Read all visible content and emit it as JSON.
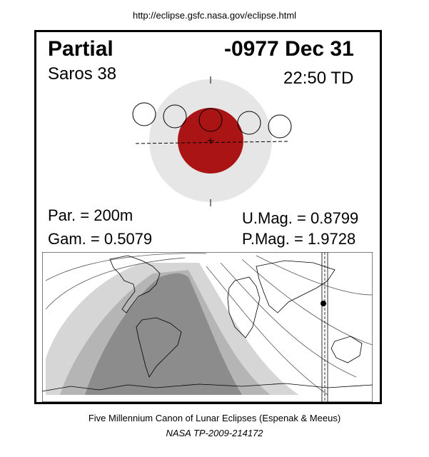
{
  "header": {
    "url": "http://eclipse.gsfc.nasa.gov/eclipse.html"
  },
  "eclipse": {
    "type": "Partial",
    "date": "-0977 Dec 31",
    "saros": "Saros  38",
    "time": "22:50 TD",
    "par": "Par. = 200m",
    "gam": "Gam. = 0.5079",
    "umag": "U.Mag. = 0.8799",
    "pmag": "P.Mag. = 1.9728"
  },
  "colors": {
    "penumbra": "#e6e6e6",
    "umbra": "#aa1414",
    "map_dark": "#8c8c8c",
    "map_mid": "#b5b5b5",
    "map_light": "#d6d6d6"
  },
  "footer": {
    "canon": "Five Millennium Canon of Lunar Eclipses (Espenak & Meeus)",
    "publication": "NASA TP-2009-214172"
  }
}
